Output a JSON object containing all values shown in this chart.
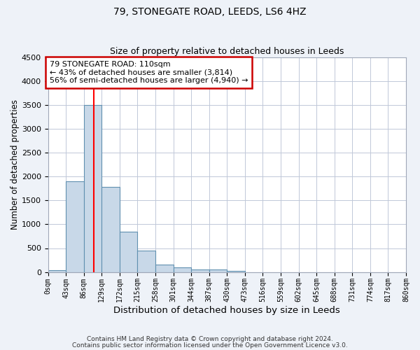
{
  "title1": "79, STONEGATE ROAD, LEEDS, LS6 4HZ",
  "title2": "Size of property relative to detached houses in Leeds",
  "xlabel": "Distribution of detached houses by size in Leeds",
  "ylabel": "Number of detached properties",
  "bar_color": "#c8d8e8",
  "bar_edge_color": "#6090b0",
  "bar_heights": [
    40,
    1900,
    3500,
    1780,
    850,
    450,
    160,
    90,
    55,
    45,
    30,
    0,
    0,
    0,
    0,
    0,
    0,
    0,
    0,
    0
  ],
  "x_labels": [
    "0sqm",
    "43sqm",
    "86sqm",
    "129sqm",
    "172sqm",
    "215sqm",
    "258sqm",
    "301sqm",
    "344sqm",
    "387sqm",
    "430sqm",
    "473sqm",
    "516sqm",
    "559sqm",
    "602sqm",
    "645sqm",
    "688sqm",
    "731sqm",
    "774sqm",
    "817sqm",
    "860sqm"
  ],
  "ylim": [
    0,
    4500
  ],
  "yticks": [
    0,
    500,
    1000,
    1500,
    2000,
    2500,
    3000,
    3500,
    4000,
    4500
  ],
  "red_line_x": 2.558,
  "annotation_text": "79 STONEGATE ROAD: 110sqm\n← 43% of detached houses are smaller (3,814)\n56% of semi-detached houses are larger (4,940) →",
  "annotation_box_color": "#ffffff",
  "annotation_box_edge": "#cc0000",
  "footnote1": "Contains HM Land Registry data © Crown copyright and database right 2024.",
  "footnote2": "Contains public sector information licensed under the Open Government Licence v3.0.",
  "bg_color": "#eef2f8",
  "plot_bg_color": "#ffffff",
  "grid_color": "#c0c8d8"
}
